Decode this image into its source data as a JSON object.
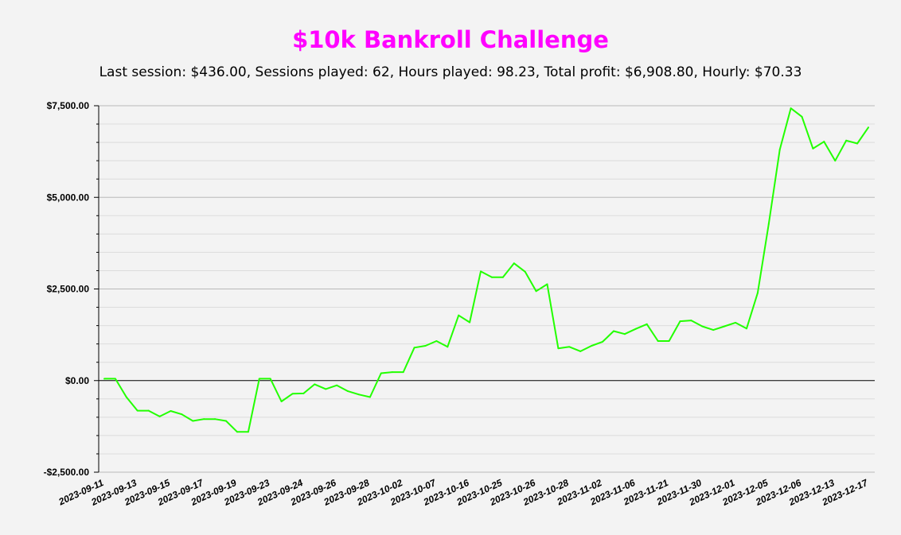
{
  "chart_data": {
    "type": "line",
    "title": "$10k Bankroll Challenge",
    "subtitle": "Last session: $436.00, Sessions played: 62, Hours played: 98.23, Total profit: $6,908.80, Hourly: $70.33",
    "xlabel": "",
    "ylabel": "",
    "ylim": [
      -2500,
      7500
    ],
    "y_ticks": [
      -2500,
      0,
      2500,
      5000,
      7500
    ],
    "y_tick_labels": [
      "-$2,500.00",
      "$0.00",
      "$2,500.00",
      "$5,000.00",
      "$7,500.00"
    ],
    "grid": true,
    "line_color": "#22ff00",
    "x_tick_labels": [
      "2023-09-11",
      "2023-09-13",
      "2023-09-15",
      "2023-09-17",
      "2023-09-19",
      "2023-09-23",
      "2023-09-24",
      "2023-09-26",
      "2023-09-28",
      "2023-10-02",
      "2023-10-07",
      "2023-10-16",
      "2023-10-25",
      "2023-10-26",
      "2023-10-28",
      "2023-11-02",
      "2023-11-06",
      "2023-11-21",
      "2023-11-30",
      "2023-12-01",
      "2023-12-05",
      "2023-12-06",
      "2023-12-13",
      "2023-12-17"
    ],
    "series": [
      {
        "values": [
          50,
          50,
          -450,
          -820,
          -820,
          -980,
          -830,
          -920,
          -1100,
          -1050,
          -1050,
          -1100,
          -1400,
          -1400,
          50,
          50,
          -570,
          -360,
          -350,
          -100,
          -230,
          -130,
          -290,
          -380,
          -450,
          200,
          230,
          230,
          900,
          950,
          1080,
          920,
          1780,
          1590,
          2980,
          2820,
          2820,
          3200,
          2970,
          2440,
          2630,
          880,
          920,
          800,
          950,
          1060,
          1350,
          1270,
          1410,
          1540,
          1080,
          1080,
          1620,
          1640,
          1480,
          1380,
          1480,
          1580,
          1420,
          2390,
          4270,
          6300,
          7430,
          7200,
          6330,
          6520,
          6000,
          6550,
          6470,
          6908.8
        ]
      }
    ]
  }
}
